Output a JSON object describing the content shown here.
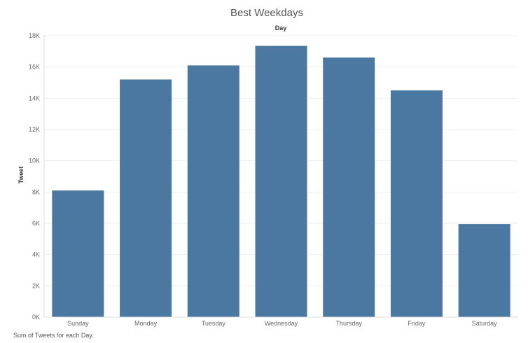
{
  "chart_data": {
    "type": "bar",
    "title": "Best Weekdays",
    "column_header": "Day",
    "ylabel": "Tweet",
    "xlabel": "",
    "categories": [
      "Sunday",
      "Monday",
      "Tuesday",
      "Wednesday",
      "Thursday",
      "Friday",
      "Saturday"
    ],
    "values": [
      8100,
      15200,
      16100,
      17350,
      16600,
      14500,
      5950
    ],
    "ylim": [
      0,
      18000
    ],
    "yticks": [
      0,
      2000,
      4000,
      6000,
      8000,
      10000,
      12000,
      14000,
      16000,
      18000
    ],
    "ytick_labels": [
      "0K",
      "2K",
      "4K",
      "6K",
      "8K",
      "10K",
      "12K",
      "14K",
      "16K",
      "18K"
    ],
    "grid": true,
    "legend": "none",
    "bar_color": "#4a78a0",
    "footer": "Sum of Tweets for each Day."
  }
}
